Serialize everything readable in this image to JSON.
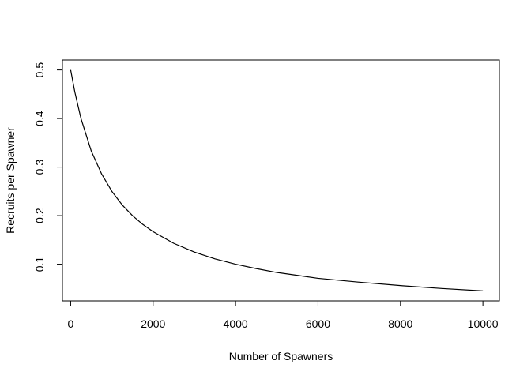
{
  "chart_data": {
    "type": "line",
    "title": "",
    "xlabel": "Number of Spawners",
    "ylabel": "Recruits per Spawner",
    "xlim": [
      -200,
      10400
    ],
    "ylim": [
      0.0245,
      0.5205
    ],
    "xticks": [
      0,
      2000,
      4000,
      6000,
      8000,
      10000
    ],
    "xtick_labels": [
      "0",
      "2000",
      "4000",
      "6000",
      "8000",
      "10000"
    ],
    "yticks": [
      0.1,
      0.2,
      0.3,
      0.4,
      0.5
    ],
    "ytick_labels": [
      "0.1",
      "0.2",
      "0.3",
      "0.4",
      "0.5"
    ],
    "grid": false,
    "legend": "none",
    "line_color": "#000000",
    "series": [
      {
        "x": [
          0,
          100,
          250,
          500,
          750,
          1000,
          1250,
          1500,
          1750,
          2000,
          2500,
          3000,
          3500,
          4000,
          4500,
          5000,
          6000,
          7000,
          8000,
          9000,
          10000
        ],
        "values": [
          0.5,
          0.455,
          0.4,
          0.333,
          0.286,
          0.25,
          0.222,
          0.2,
          0.182,
          0.167,
          0.143,
          0.125,
          0.111,
          0.1,
          0.091,
          0.083,
          0.071,
          0.063,
          0.056,
          0.05,
          0.045
        ]
      }
    ]
  }
}
